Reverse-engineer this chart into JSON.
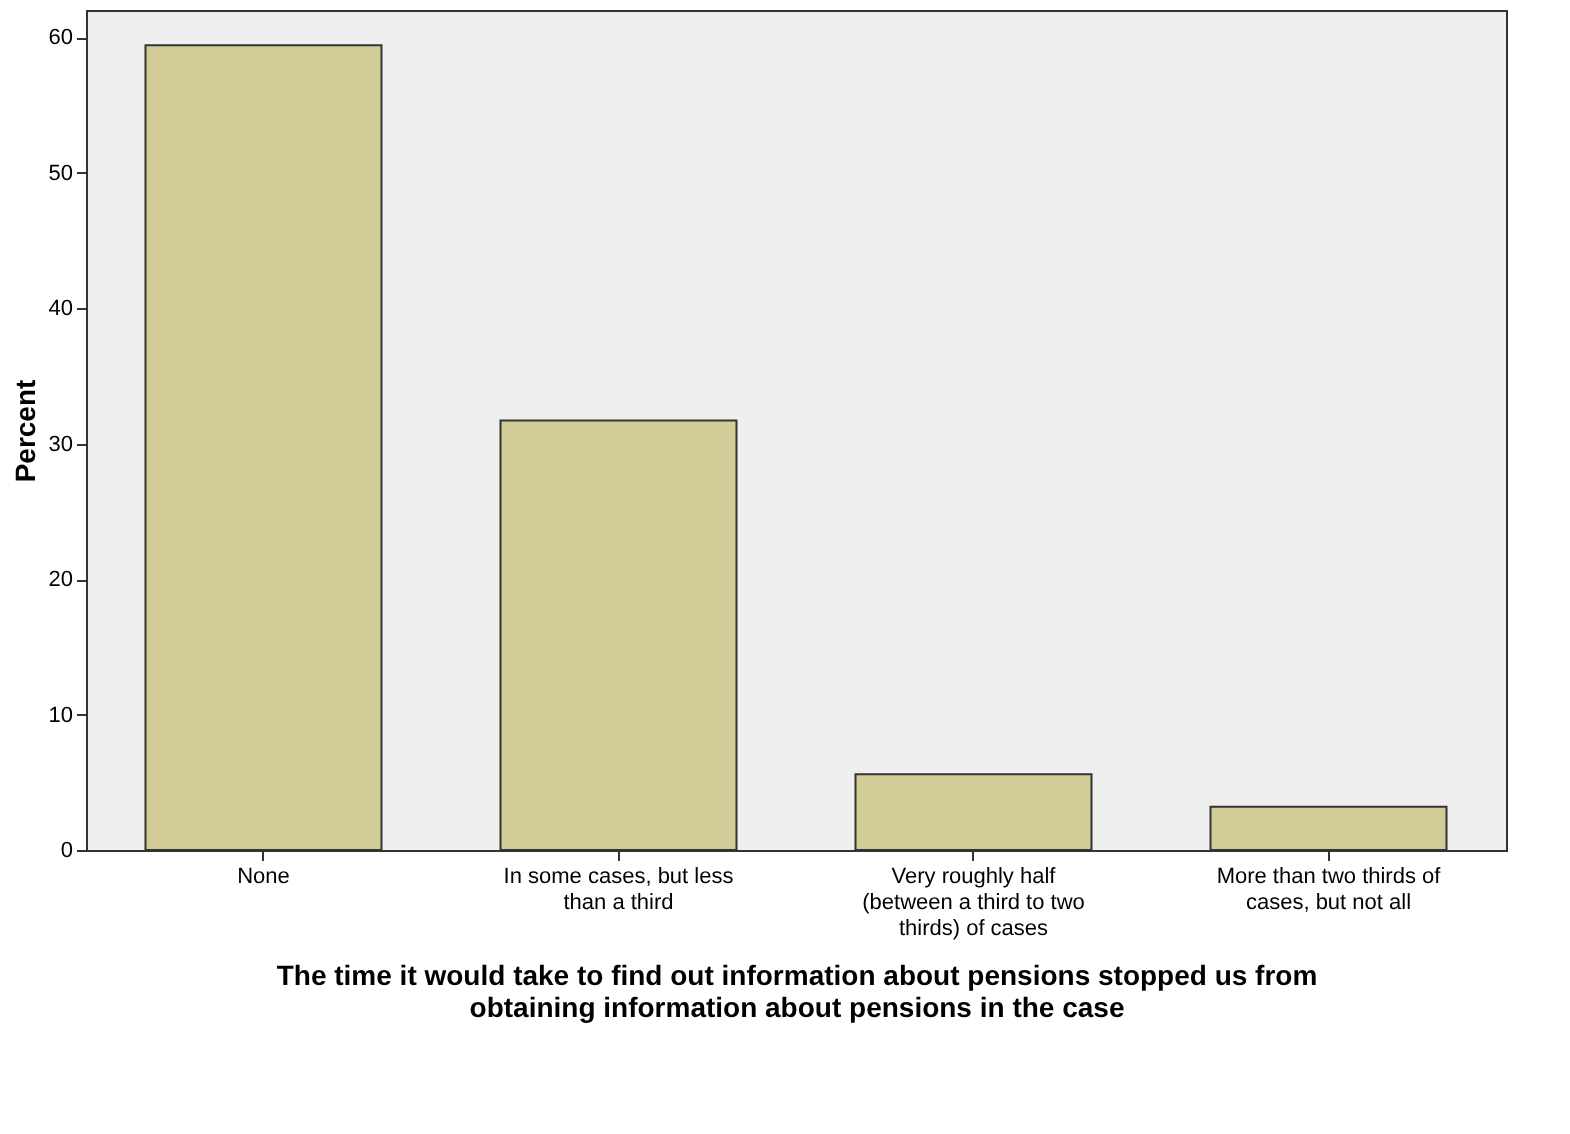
{
  "chart_data": {
    "type": "bar",
    "xlabel": "The time it would take to find out information about pensions stopped us from obtaining information about pensions in the case",
    "ylabel": "Percent",
    "categories": [
      "None",
      "In some cases, but less than a third",
      "Very roughly half (between a third to two thirds) of cases",
      "More than two thirds of cases, but not all"
    ],
    "values": [
      59.4,
      31.7,
      5.6,
      3.2
    ],
    "color": "#d2cd96",
    "ylim": [
      0,
      62
    ],
    "yticks": [
      0,
      10,
      20,
      30,
      40,
      50,
      60
    ],
    "grid": false
  }
}
